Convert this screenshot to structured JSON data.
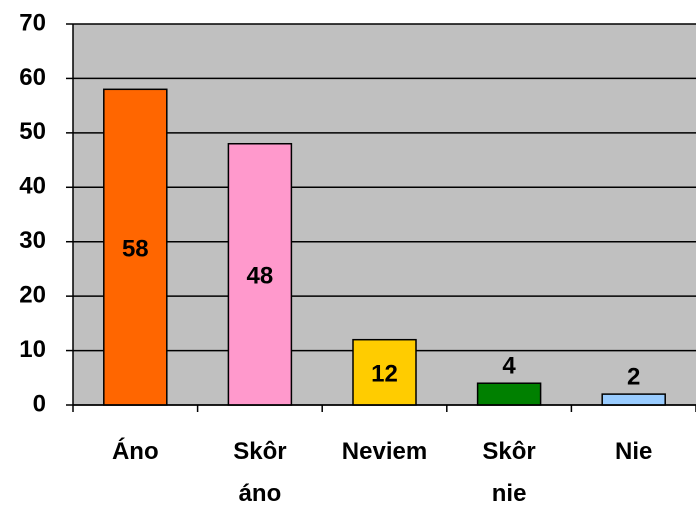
{
  "chart_data": {
    "type": "bar",
    "categories": [
      "Áno",
      "Skôr áno",
      "Neviem",
      "Skôr nie",
      "Nie"
    ],
    "values": [
      58,
      48,
      12,
      4,
      2
    ],
    "colors": [
      "#ff6600",
      "#ff99cc",
      "#ffcc00",
      "#008000",
      "#99ccff"
    ],
    "ylim": [
      0,
      70
    ],
    "yticks": [
      0,
      10,
      20,
      30,
      40,
      50,
      60,
      70
    ],
    "grid": true
  }
}
